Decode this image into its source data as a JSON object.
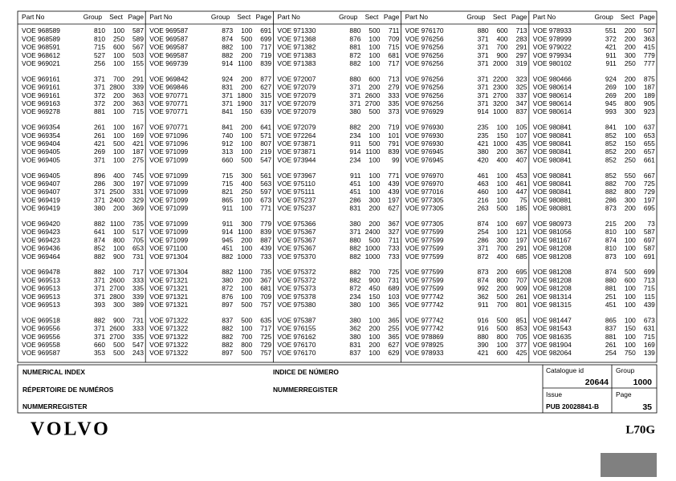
{
  "header": {
    "columns": [
      "Part No",
      "Group",
      "Sect",
      "Page"
    ]
  },
  "columns": [
    [
      [
        [
          "VOE 968589",
          810,
          100,
          587
        ],
        [
          "VOE 968589",
          810,
          250,
          589
        ],
        [
          "VOE 968591",
          715,
          600,
          567
        ],
        [
          "VOE 968612",
          527,
          100,
          503
        ],
        [
          "VOE 969021",
          256,
          100,
          155
        ]
      ],
      [
        [
          "VOE 969161",
          371,
          700,
          291
        ],
        [
          "VOE 969161",
          371,
          2800,
          339
        ],
        [
          "VOE 969161",
          372,
          200,
          363
        ],
        [
          "VOE 969163",
          372,
          200,
          363
        ],
        [
          "VOE 969278",
          881,
          100,
          715
        ]
      ],
      [
        [
          "VOE 969354",
          261,
          100,
          167
        ],
        [
          "VOE 969354",
          261,
          100,
          169
        ],
        [
          "VOE 969404",
          421,
          500,
          421
        ],
        [
          "VOE 969405",
          269,
          100,
          187
        ],
        [
          "VOE 969405",
          371,
          100,
          275
        ]
      ],
      [
        [
          "VOE 969405",
          896,
          400,
          745
        ],
        [
          "VOE 969407",
          286,
          300,
          197
        ],
        [
          "VOE 969407",
          371,
          2500,
          331
        ],
        [
          "VOE 969419",
          371,
          2400,
          329
        ],
        [
          "VOE 969419",
          380,
          200,
          369
        ]
      ],
      [
        [
          "VOE 969420",
          882,
          1100,
          735
        ],
        [
          "VOE 969423",
          641,
          100,
          517
        ],
        [
          "VOE 969423",
          874,
          800,
          705
        ],
        [
          "VOE 969436",
          852,
          100,
          653
        ],
        [
          "VOE 969464",
          882,
          900,
          731
        ]
      ],
      [
        [
          "VOE 969478",
          882,
          100,
          717
        ],
        [
          "VOE 969513",
          371,
          2600,
          333
        ],
        [
          "VOE 969513",
          371,
          2700,
          335
        ],
        [
          "VOE 969513",
          371,
          2800,
          339
        ],
        [
          "VOE 969513",
          393,
          300,
          389
        ]
      ],
      [
        [
          "VOE 969518",
          882,
          900,
          731
        ],
        [
          "VOE 969556",
          371,
          2600,
          333
        ],
        [
          "VOE 969556",
          371,
          2700,
          335
        ],
        [
          "VOE 969558",
          660,
          500,
          547
        ],
        [
          "VOE 969587",
          353,
          500,
          243
        ]
      ]
    ],
    [
      [
        [
          "VOE 969587",
          873,
          100,
          691
        ],
        [
          "VOE 969587",
          874,
          500,
          699
        ],
        [
          "VOE 969587",
          882,
          100,
          717
        ],
        [
          "VOE 969587",
          882,
          200,
          719
        ],
        [
          "VOE 969739",
          914,
          1100,
          839
        ]
      ],
      [
        [
          "VOE 969842",
          924,
          200,
          877
        ],
        [
          "VOE 969846",
          831,
          200,
          627
        ],
        [
          "VOE 970771",
          371,
          1800,
          315
        ],
        [
          "VOE 970771",
          371,
          1900,
          317
        ],
        [
          "VOE 970771",
          841,
          150,
          639
        ]
      ],
      [
        [
          "VOE 970771",
          841,
          200,
          641
        ],
        [
          "VOE 971096",
          740,
          100,
          571
        ],
        [
          "VOE 971096",
          912,
          100,
          807
        ],
        [
          "VOE 971099",
          313,
          100,
          219
        ],
        [
          "VOE 971099",
          660,
          500,
          547
        ]
      ],
      [
        [
          "VOE 971099",
          715,
          300,
          561
        ],
        [
          "VOE 971099",
          715,
          400,
          563
        ],
        [
          "VOE 971099",
          821,
          250,
          597
        ],
        [
          "VOE 971099",
          865,
          100,
          673
        ],
        [
          "VOE 971099",
          911,
          100,
          771
        ]
      ],
      [
        [
          "VOE 971099",
          911,
          300,
          779
        ],
        [
          "VOE 971099",
          914,
          1100,
          839
        ],
        [
          "VOE 971099",
          945,
          200,
          887
        ],
        [
          "VOE 971100",
          451,
          100,
          439
        ],
        [
          "VOE 971304",
          882,
          1000,
          733
        ]
      ],
      [
        [
          "VOE 971304",
          882,
          1100,
          735
        ],
        [
          "VOE 971321",
          380,
          200,
          367
        ],
        [
          "VOE 971321",
          872,
          100,
          681
        ],
        [
          "VOE 971321",
          876,
          100,
          709
        ],
        [
          "VOE 971321",
          897,
          500,
          757
        ]
      ],
      [
        [
          "VOE 971322",
          837,
          500,
          635
        ],
        [
          "VOE 971322",
          882,
          100,
          717
        ],
        [
          "VOE 971322",
          882,
          700,
          725
        ],
        [
          "VOE 971322",
          882,
          800,
          729
        ],
        [
          "VOE 971322",
          897,
          500,
          757
        ]
      ]
    ],
    [
      [
        [
          "VOE 971330",
          880,
          500,
          711
        ],
        [
          "VOE 971368",
          876,
          100,
          709
        ],
        [
          "VOE 971382",
          881,
          100,
          715
        ],
        [
          "VOE 971383",
          872,
          100,
          681
        ],
        [
          "VOE 971383",
          882,
          100,
          717
        ]
      ],
      [
        [
          "VOE 972007",
          880,
          600,
          713
        ],
        [
          "VOE 972079",
          371,
          200,
          279
        ],
        [
          "VOE 972079",
          371,
          2600,
          333
        ],
        [
          "VOE 972079",
          371,
          2700,
          335
        ],
        [
          "VOE 972079",
          380,
          500,
          373
        ]
      ],
      [
        [
          "VOE 972079",
          882,
          200,
          719
        ],
        [
          "VOE 972264",
          234,
          100,
          101
        ],
        [
          "VOE 973871",
          911,
          500,
          791
        ],
        [
          "VOE 973871",
          914,
          1100,
          839
        ],
        [
          "VOE 973944",
          234,
          100,
          99
        ]
      ],
      [
        [
          "VOE 973967",
          911,
          100,
          771
        ],
        [
          "VOE 975110",
          451,
          100,
          439
        ],
        [
          "VOE 975111",
          451,
          100,
          439
        ],
        [
          "VOE 975237",
          286,
          300,
          197
        ],
        [
          "VOE 975237",
          831,
          200,
          627
        ]
      ],
      [
        [
          "VOE 975366",
          380,
          200,
          367
        ],
        [
          "VOE 975367",
          371,
          2400,
          327
        ],
        [
          "VOE 975367",
          880,
          500,
          711
        ],
        [
          "VOE 975367",
          882,
          1000,
          733
        ],
        [
          "VOE 975370",
          882,
          1000,
          733
        ]
      ],
      [
        [
          "VOE 975372",
          882,
          700,
          725
        ],
        [
          "VOE 975372",
          882,
          900,
          731
        ],
        [
          "VOE 975373",
          872,
          450,
          689
        ],
        [
          "VOE 975378",
          234,
          150,
          103
        ],
        [
          "VOE 975380",
          380,
          100,
          365
        ]
      ],
      [
        [
          "VOE 975387",
          380,
          100,
          365
        ],
        [
          "VOE 976155",
          362,
          200,
          255
        ],
        [
          "VOE 976162",
          380,
          100,
          365
        ],
        [
          "VOE 976170",
          831,
          200,
          627
        ],
        [
          "VOE 976170",
          837,
          100,
          629
        ]
      ]
    ],
    [
      [
        [
          "VOE 976170",
          880,
          600,
          713
        ],
        [
          "VOE 976256",
          371,
          400,
          283
        ],
        [
          "VOE 976256",
          371,
          700,
          291
        ],
        [
          "VOE 976256",
          371,
          900,
          297
        ],
        [
          "VOE 976256",
          371,
          2000,
          319
        ]
      ],
      [
        [
          "VOE 976256",
          371,
          2200,
          323
        ],
        [
          "VOE 976256",
          371,
          2300,
          325
        ],
        [
          "VOE 976256",
          371,
          2700,
          337
        ],
        [
          "VOE 976256",
          371,
          3200,
          347
        ],
        [
          "VOE 976929",
          914,
          1000,
          837
        ]
      ],
      [
        [
          "VOE 976930",
          235,
          100,
          105
        ],
        [
          "VOE 976930",
          235,
          150,
          107
        ],
        [
          "VOE 976930",
          421,
          1000,
          435
        ],
        [
          "VOE 976945",
          380,
          200,
          367
        ],
        [
          "VOE 976945",
          420,
          400,
          407
        ]
      ],
      [
        [
          "VOE 976970",
          461,
          100,
          453
        ],
        [
          "VOE 976970",
          463,
          100,
          461
        ],
        [
          "VOE 977016",
          460,
          100,
          447
        ],
        [
          "VOE 977305",
          216,
          100,
          75
        ],
        [
          "VOE 977305",
          263,
          500,
          185
        ]
      ],
      [
        [
          "VOE 977305",
          874,
          100,
          697
        ],
        [
          "VOE 977599",
          254,
          100,
          121
        ],
        [
          "VOE 977599",
          286,
          300,
          197
        ],
        [
          "VOE 977599",
          371,
          700,
          291
        ],
        [
          "VOE 977599",
          872,
          400,
          685
        ]
      ],
      [
        [
          "VOE 977599",
          873,
          200,
          695
        ],
        [
          "VOE 977599",
          874,
          800,
          707
        ],
        [
          "VOE 977599",
          992,
          200,
          909
        ],
        [
          "VOE 977742",
          362,
          500,
          261
        ],
        [
          "VOE 977742",
          911,
          700,
          801
        ]
      ],
      [
        [
          "VOE 977742",
          916,
          500,
          851
        ],
        [
          "VOE 977742",
          916,
          500,
          853
        ],
        [
          "VOE 978869",
          880,
          800,
          705
        ],
        [
          "VOE 978925",
          390,
          100,
          377
        ],
        [
          "VOE 978933",
          421,
          600,
          425
        ]
      ]
    ],
    [
      [
        [
          "VOE 978933",
          551,
          200,
          507
        ],
        [
          "VOE 978999",
          372,
          200,
          363
        ],
        [
          "VOE 979022",
          421,
          200,
          415
        ],
        [
          "VOE 979934",
          911,
          300,
          779
        ],
        [
          "VOE 980102",
          911,
          250,
          777
        ]
      ],
      [
        [
          "VOE 980466",
          924,
          200,
          875
        ],
        [
          "VOE 980614",
          269,
          100,
          187
        ],
        [
          "VOE 980614",
          269,
          200,
          189
        ],
        [
          "VOE 980614",
          945,
          800,
          905
        ],
        [
          "VOE 980614",
          993,
          300,
          923
        ]
      ],
      [
        [
          "VOE 980841",
          841,
          100,
          637
        ],
        [
          "VOE 980841",
          852,
          100,
          653
        ],
        [
          "VOE 980841",
          852,
          150,
          655
        ],
        [
          "VOE 980841",
          852,
          200,
          657
        ],
        [
          "VOE 980841",
          852,
          250,
          661
        ]
      ],
      [
        [
          "VOE 980841",
          852,
          550,
          667
        ],
        [
          "VOE 980841",
          882,
          700,
          725
        ],
        [
          "VOE 980841",
          882,
          800,
          729
        ],
        [
          "VOE 980881",
          286,
          300,
          197
        ],
        [
          "VOE 980881",
          873,
          200,
          695
        ]
      ],
      [
        [
          "VOE 980973",
          215,
          200,
          73
        ],
        [
          "VOE 981056",
          810,
          100,
          587
        ],
        [
          "VOE 981167",
          874,
          100,
          697
        ],
        [
          "VOE 981208",
          810,
          100,
          587
        ],
        [
          "VOE 981208",
          873,
          100,
          691
        ]
      ],
      [
        [
          "VOE 981208",
          874,
          500,
          699
        ],
        [
          "VOE 981208",
          880,
          600,
          713
        ],
        [
          "VOE 981208",
          881,
          100,
          715
        ],
        [
          "VOE 981314",
          251,
          100,
          115
        ],
        [
          "VOE 981315",
          451,
          100,
          439
        ]
      ],
      [
        [
          "VOE 981447",
          865,
          100,
          673
        ],
        [
          "VOE 981543",
          837,
          150,
          631
        ],
        [
          "VOE 981635",
          881,
          100,
          715
        ],
        [
          "VOE 981904",
          261,
          100,
          169
        ],
        [
          "VOE 982064",
          254,
          750,
          139
        ]
      ]
    ]
  ],
  "footer": {
    "title_en": "NUMERICAL INDEX",
    "title_es": "INDICE DE NÚMERO",
    "title_fr": "RÉPERTOIRE DE NUMÉROS",
    "title_de": "NUMMERREGISTER",
    "title_nl": "NUMMERREGISTER",
    "catalogue_id_label": "Catalogue id",
    "catalogue_id": "20644",
    "group_label": "Group",
    "group": "1000",
    "issue_label": "Issue",
    "issue": "PUB 20028841-B",
    "page_label": "Page",
    "page": "35"
  },
  "brand": {
    "logo": "VOLVO",
    "model": "L70G"
  }
}
